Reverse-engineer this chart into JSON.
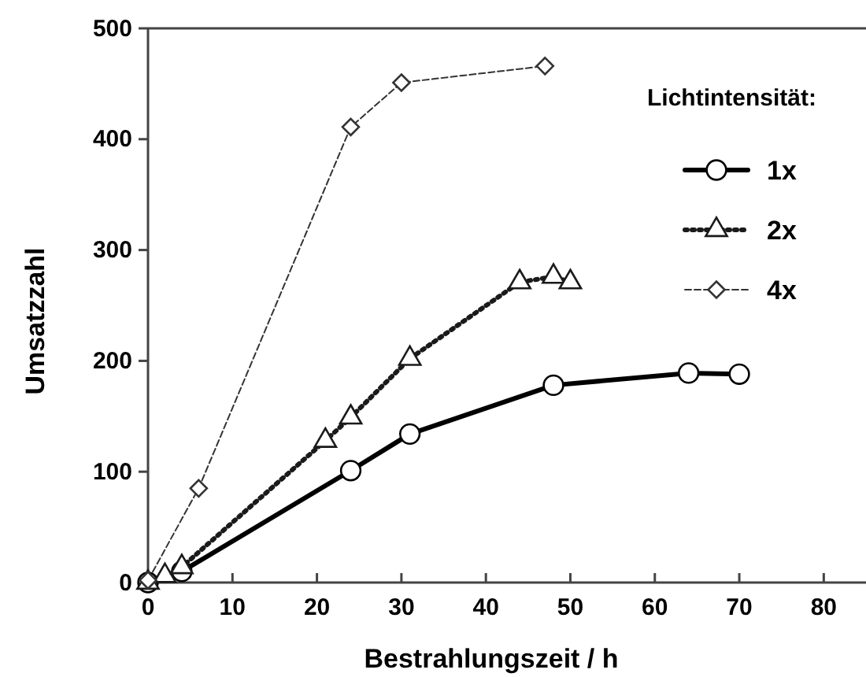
{
  "chart_data": {
    "type": "line",
    "xlabel": "Bestrahlungszeit / h",
    "ylabel": "Umsatzzahl",
    "legend_title": "Lichtintensität:",
    "legend": "top right",
    "xlim": [
      0,
      85
    ],
    "xticks": [
      0,
      10,
      20,
      30,
      40,
      50,
      60,
      70,
      80
    ],
    "ylim": [
      0,
      500
    ],
    "yticks": [
      0,
      100,
      200,
      300,
      400,
      500
    ],
    "series": [
      {
        "name": "1x",
        "color": "#000000",
        "marker": "circle",
        "line_style": "solid",
        "x": [
          0,
          4,
          24,
          31,
          48,
          64,
          70
        ],
        "values": [
          0,
          10,
          101,
          134,
          178,
          189,
          188
        ]
      },
      {
        "name": "2x",
        "color": "#1a1a1a",
        "marker": "triangle",
        "line_style": "dotted",
        "x": [
          0,
          2,
          4,
          21,
          24,
          31,
          44,
          48,
          50
        ],
        "values": [
          0,
          6,
          14,
          128,
          149,
          202,
          271,
          276,
          271
        ]
      },
      {
        "name": "4x",
        "color": "#333333",
        "marker": "diamond",
        "line_style": "dashed",
        "x": [
          0,
          6,
          24,
          30,
          47
        ],
        "values": [
          2,
          85,
          411,
          451,
          466
        ]
      }
    ]
  }
}
